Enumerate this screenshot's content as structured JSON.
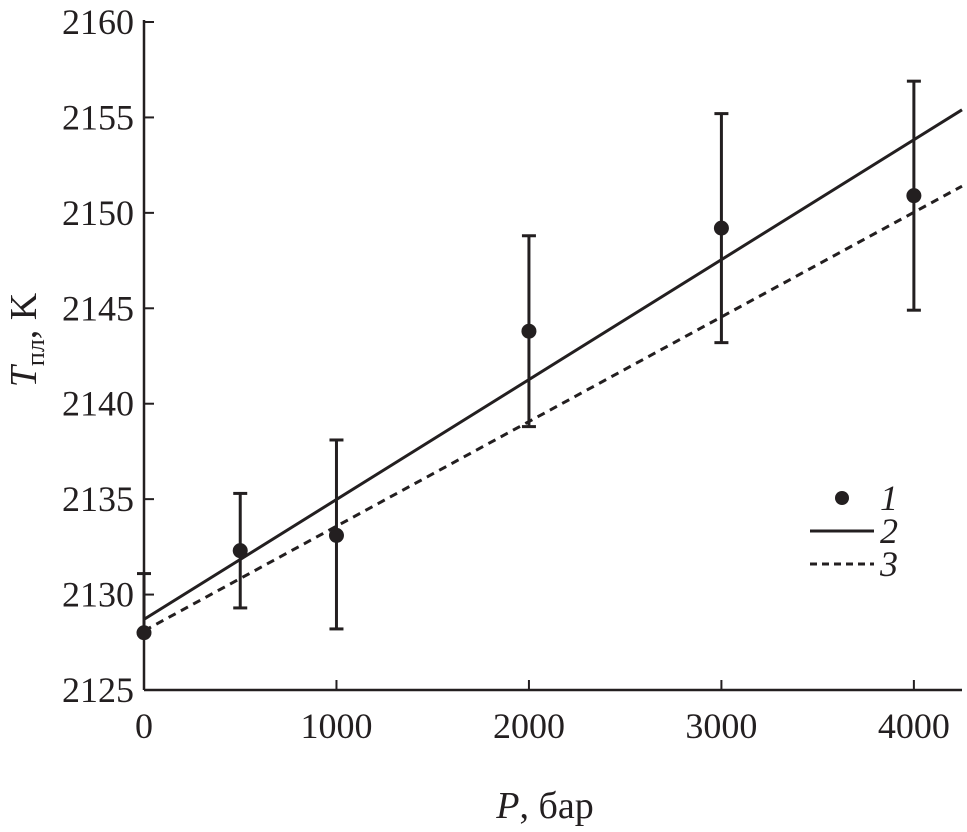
{
  "chart_data": {
    "type": "scatter",
    "xlabel": {
      "symbol": "P",
      "rest": ", бар"
    },
    "ylabel": {
      "symbol": "T",
      "subscript": "пл",
      "rest": ", K"
    },
    "xlim": [
      0,
      4250
    ],
    "ylim": [
      2125,
      2160
    ],
    "xticks": [
      0,
      1000,
      2000,
      3000,
      4000
    ],
    "yticks": [
      2125,
      2130,
      2135,
      2140,
      2145,
      2150,
      2155,
      2160
    ],
    "xtick_labels": [
      "0",
      "1000",
      "2000",
      "3000",
      "4000"
    ],
    "ytick_labels": [
      "2125",
      "2130",
      "2135",
      "2140",
      "2145",
      "2150",
      "2155",
      "2160"
    ],
    "series": [
      {
        "name": "1",
        "kind": "points_with_errorbars",
        "x": [
          0,
          500,
          1000,
          2000,
          3000,
          4000
        ],
        "y": [
          2128.0,
          2132.3,
          2133.1,
          2143.8,
          2149.2,
          2150.9
        ],
        "err_low": [
          2128.0,
          2129.3,
          2128.2,
          2138.8,
          2143.2,
          2144.9
        ],
        "err_high": [
          2131.1,
          2135.3,
          2138.1,
          2148.8,
          2155.2,
          2156.9
        ]
      },
      {
        "name": "2",
        "kind": "line_solid",
        "x": [
          0,
          4250
        ],
        "y": [
          2128.7,
          2155.4
        ]
      },
      {
        "name": "3",
        "kind": "line_dashed",
        "x": [
          0,
          4250
        ],
        "y": [
          2128.1,
          2151.4
        ]
      }
    ],
    "legend": {
      "position": "right",
      "entries": [
        {
          "marker": "point",
          "label": "1"
        },
        {
          "marker": "solid",
          "label": "2"
        },
        {
          "marker": "dashed",
          "label": "3"
        }
      ]
    },
    "grid": false,
    "color": "#231f20"
  }
}
